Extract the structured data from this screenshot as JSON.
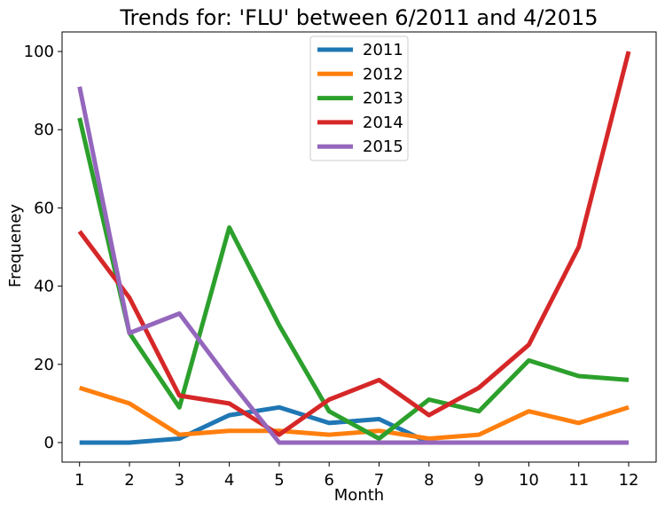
{
  "chart_data": {
    "type": "line",
    "title": "Trends for: 'FLU' between 6/2011 and 4/2015",
    "xlabel": "Month",
    "ylabel": "Frequeney",
    "x": [
      1,
      2,
      3,
      4,
      5,
      6,
      7,
      8,
      9,
      10,
      11,
      12
    ],
    "xlim": [
      0.65,
      12.55
    ],
    "ylim": [
      -5,
      105
    ],
    "yticks": [
      0,
      20,
      40,
      60,
      80,
      100
    ],
    "grid": false,
    "legend_position": "top-center",
    "series": [
      {
        "name": "2011",
        "color": "#1f77b4",
        "values": [
          0,
          0,
          1,
          7,
          9,
          5,
          6,
          0,
          0,
          0,
          0,
          0
        ]
      },
      {
        "name": "2012",
        "color": "#ff7f0e",
        "values": [
          14,
          10,
          2,
          3,
          3,
          2,
          3,
          1,
          2,
          8,
          5,
          9
        ]
      },
      {
        "name": "2013",
        "color": "#2ca02c",
        "values": [
          83,
          28,
          9,
          55,
          30,
          8,
          1,
          11,
          8,
          21,
          17,
          16
        ]
      },
      {
        "name": "2014",
        "color": "#d62728",
        "values": [
          54,
          37,
          12,
          10,
          2,
          11,
          16,
          7,
          14,
          25,
          50,
          100
        ]
      },
      {
        "name": "2015",
        "color": "#9467bd",
        "values": [
          91,
          28,
          33,
          16,
          0,
          0,
          0,
          0,
          0,
          0,
          0,
          0
        ]
      }
    ]
  }
}
